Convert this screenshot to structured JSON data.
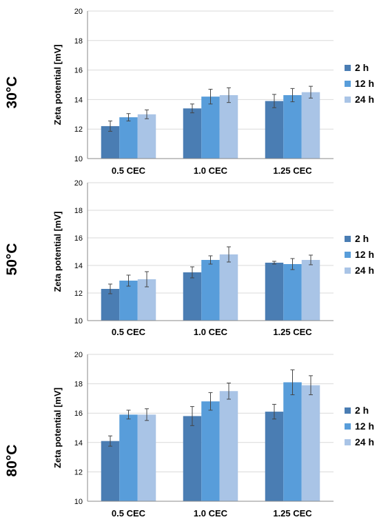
{
  "colors": {
    "series": [
      "#4a7db3",
      "#589dda",
      "#a9c4e6"
    ],
    "grid": "#d9d9d9",
    "axis": "#888888",
    "errorbar": "#444444"
  },
  "chart_data": [
    {
      "type": "bar",
      "panel_label": "30°C",
      "ylabel": "Zeta potential [mV]",
      "ylim": [
        10,
        20
      ],
      "yticks": [
        10,
        12,
        14,
        16,
        18,
        20
      ],
      "grid": true,
      "legend": "right",
      "categories": [
        "0.5 CEC",
        "1.0 CEC",
        "1.25 CEC"
      ],
      "series": [
        {
          "name": "2 h",
          "values": [
            12.2,
            13.4,
            13.9
          ],
          "errors": [
            0.35,
            0.3,
            0.45
          ]
        },
        {
          "name": "12 h",
          "values": [
            12.8,
            14.2,
            14.3
          ],
          "errors": [
            0.25,
            0.5,
            0.45
          ]
        },
        {
          "name": "24 h",
          "values": [
            13.0,
            14.3,
            14.5
          ],
          "errors": [
            0.3,
            0.5,
            0.4
          ]
        }
      ]
    },
    {
      "type": "bar",
      "panel_label": "50°C",
      "ylabel": "Zeta potential [mV]",
      "ylim": [
        10,
        20
      ],
      "yticks": [
        10,
        12,
        14,
        16,
        18,
        20
      ],
      "grid": true,
      "legend": "right",
      "categories": [
        "0.5 CEC",
        "1.0 CEC",
        "1.25 CEC"
      ],
      "series": [
        {
          "name": "2 h",
          "values": [
            12.3,
            13.5,
            14.2
          ],
          "errors": [
            0.35,
            0.4,
            0.1
          ]
        },
        {
          "name": "12 h",
          "values": [
            12.9,
            14.4,
            14.1
          ],
          "errors": [
            0.4,
            0.3,
            0.4
          ]
        },
        {
          "name": "24 h",
          "values": [
            13.0,
            14.8,
            14.4
          ],
          "errors": [
            0.55,
            0.55,
            0.35
          ]
        }
      ]
    },
    {
      "type": "bar",
      "panel_label": "80°C",
      "ylabel": "Zeta potential [mV]",
      "ylim": [
        10,
        20
      ],
      "yticks": [
        10,
        12,
        14,
        16,
        18,
        20
      ],
      "grid": true,
      "legend": "right",
      "categories": [
        "0.5 CEC",
        "1.0 CEC",
        "1.25 CEC"
      ],
      "series": [
        {
          "name": "2 h",
          "values": [
            14.1,
            15.8,
            16.1
          ],
          "errors": [
            0.35,
            0.65,
            0.5
          ]
        },
        {
          "name": "12 h",
          "values": [
            15.9,
            16.8,
            18.1
          ],
          "errors": [
            0.3,
            0.6,
            0.85
          ]
        },
        {
          "name": "24 h",
          "values": [
            15.9,
            17.5,
            17.9
          ],
          "errors": [
            0.4,
            0.55,
            0.65
          ]
        }
      ]
    }
  ]
}
